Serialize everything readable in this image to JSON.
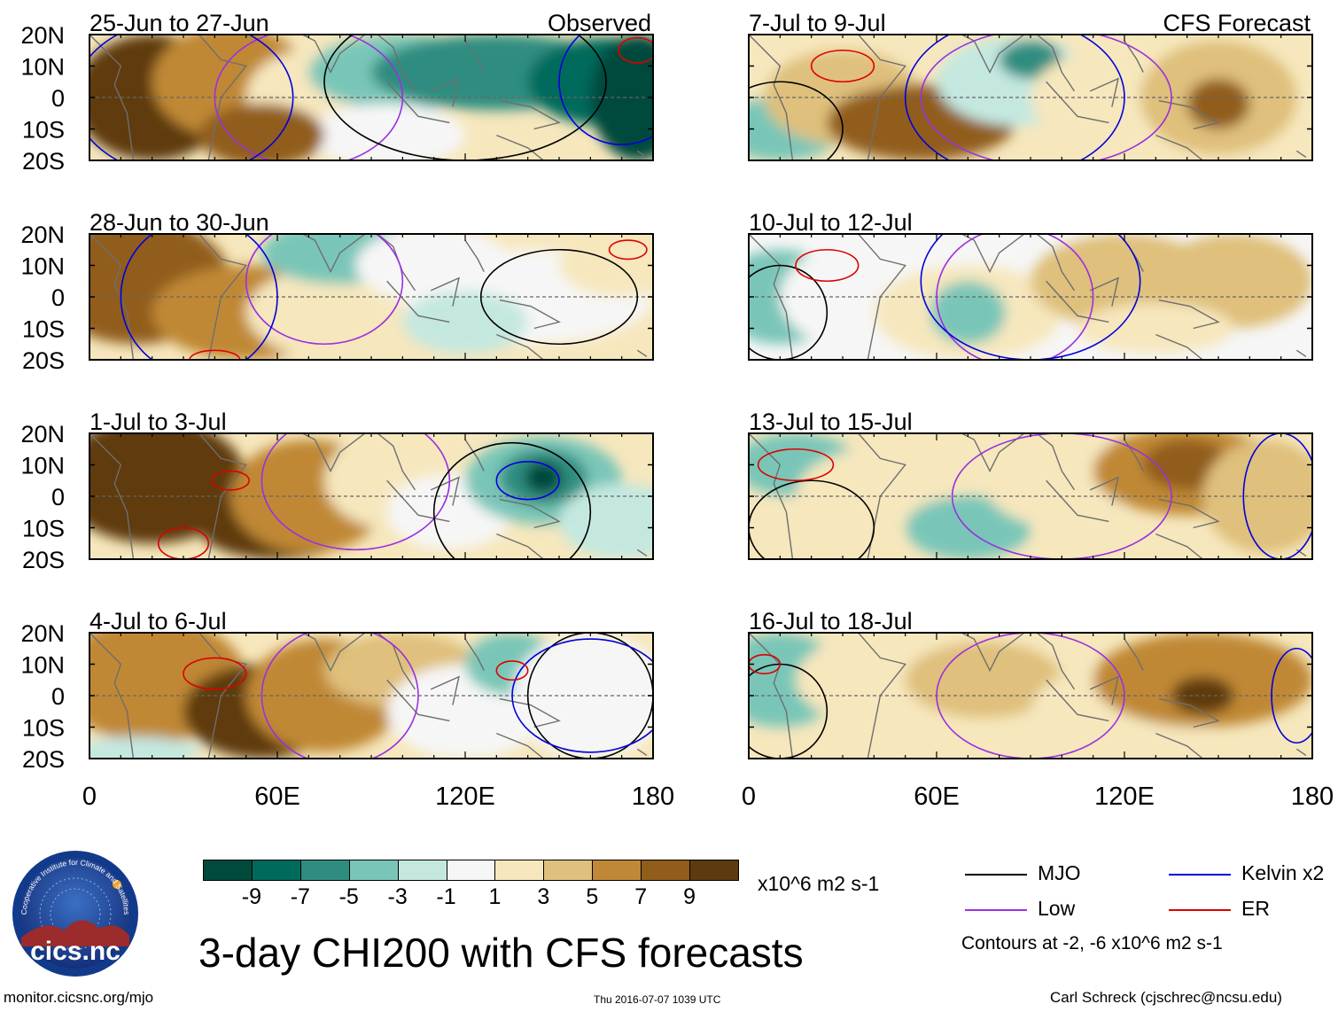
{
  "chart_data": {
    "type": "map-panels",
    "title": "3-day CHI200 with CFS forecasts",
    "units": "x10^6 m2 s-1",
    "columns": [
      {
        "label": "Observed"
      },
      {
        "label": "CFS Forecast"
      }
    ],
    "x_axis": {
      "range": [
        0,
        180
      ],
      "ticks": [
        "0",
        "60E",
        "120E",
        "180"
      ]
    },
    "y_axis": {
      "range": [
        -20,
        20
      ],
      "ticks": [
        "20N",
        "10N",
        "0",
        "10S",
        "20S"
      ]
    },
    "panels": [
      {
        "column": 0,
        "row": 0,
        "period": "25-Jun to 27-Jun"
      },
      {
        "column": 0,
        "row": 1,
        "period": "28-Jun to 30-Jun"
      },
      {
        "column": 0,
        "row": 2,
        "period": "1-Jul to 3-Jul"
      },
      {
        "column": 0,
        "row": 3,
        "period": "4-Jul to 6-Jul"
      },
      {
        "column": 1,
        "row": 0,
        "period": "7-Jul to 9-Jul"
      },
      {
        "column": 1,
        "row": 1,
        "period": "10-Jul to 12-Jul"
      },
      {
        "column": 1,
        "row": 2,
        "period": "13-Jul to 15-Jul"
      },
      {
        "column": 1,
        "row": 3,
        "period": "16-Jul to 18-Jul"
      }
    ],
    "colorbar": {
      "colors": [
        "#004a3c",
        "#006a5c",
        "#2f8d80",
        "#79c6b8",
        "#c4e8e0",
        "#f6f6f6",
        "#f6e7bd",
        "#dfc07c",
        "#c08836",
        "#915d1a",
        "#5e3b0f"
      ],
      "labels": [
        "-9",
        "-7",
        "-5",
        "-3",
        "-1",
        "1",
        "3",
        "5",
        "7",
        "9"
      ]
    },
    "legend": {
      "entries": [
        {
          "label": "MJO",
          "color": "#000000"
        },
        {
          "label": "Kelvin x2",
          "color": "#0000dd"
        },
        {
          "label": "Low",
          "color": "#9b30e0"
        },
        {
          "label": "ER",
          "color": "#dd0000"
        }
      ],
      "note": "Contours at -2, -6 x10^6 m2 s-1"
    }
  },
  "footer": {
    "org_logo_text": "cics.nc",
    "org_logo_ring": "Cooperative Institute for Climate and Satellites",
    "url": "monitor.cicsnc.org/mjo",
    "timestamp": "Thu 2016-07-07 1039 UTC",
    "author": "Carl Schreck (cjschrec@ncsu.edu)"
  }
}
